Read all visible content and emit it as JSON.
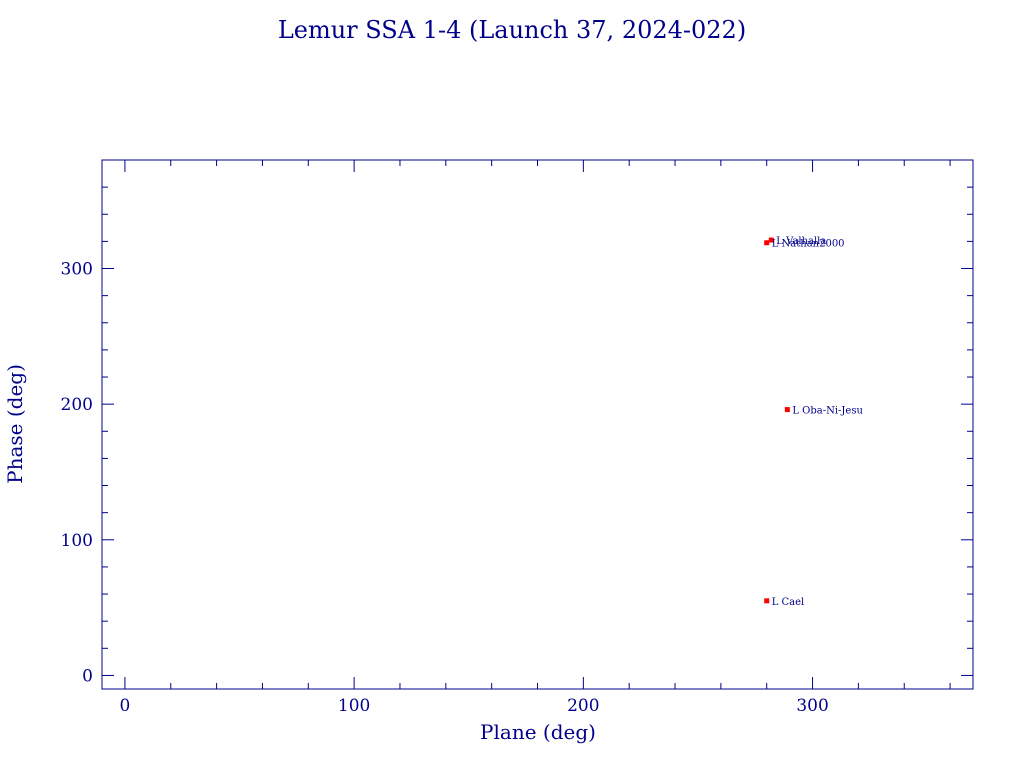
{
  "chart_data": {
    "type": "scatter",
    "title": "Lemur SSA 1-4 (Launch 37, 2024-022)",
    "xlabel": "Plane (deg)",
    "ylabel": "Phase (deg)",
    "xlim": [
      -10,
      370
    ],
    "ylim": [
      -10,
      380
    ],
    "xticks": [
      0,
      100,
      200,
      300
    ],
    "yticks": [
      0,
      100,
      200,
      300
    ],
    "grid": false,
    "colors": {
      "axis": "#00008b",
      "marker": "#ff0000",
      "text": "#00008b",
      "background": "#ffffff"
    },
    "points": [
      {
        "label": "L Valhalla",
        "x": 282,
        "y": 321
      },
      {
        "label": "L Nathan2000",
        "x": 280,
        "y": 319
      },
      {
        "label": "L Oba-Ni-Jesu",
        "x": 289,
        "y": 196
      },
      {
        "label": "L Cael",
        "x": 280,
        "y": 55
      }
    ]
  }
}
